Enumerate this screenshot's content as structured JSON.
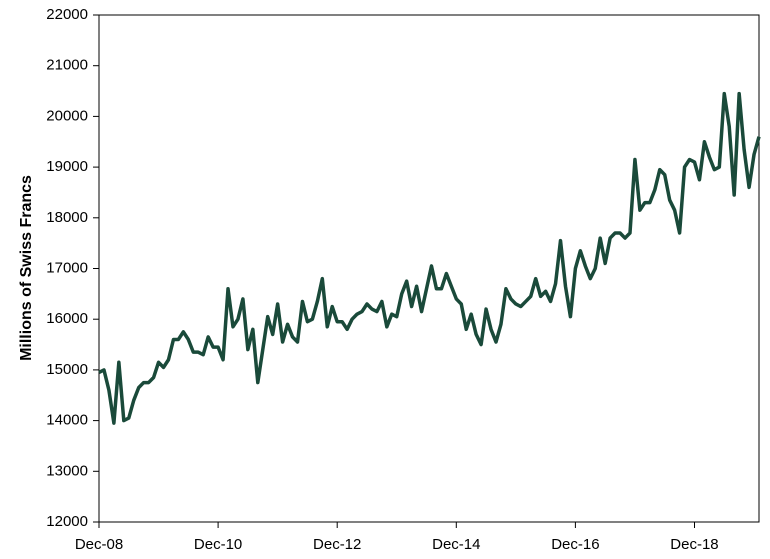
{
  "chart_data": {
    "type": "line",
    "y_label": "Millions of Swiss Francs",
    "categories": [
      "Dec-08",
      null,
      null,
      null,
      null,
      null,
      null,
      null,
      null,
      null,
      null,
      null,
      null,
      null,
      null,
      null,
      null,
      null,
      null,
      null,
      null,
      null,
      null,
      null,
      "Dec-10",
      null,
      null,
      null,
      null,
      null,
      null,
      null,
      null,
      null,
      null,
      null,
      null,
      null,
      null,
      null,
      null,
      null,
      null,
      null,
      null,
      null,
      null,
      null,
      "Dec-12",
      null,
      null,
      null,
      null,
      null,
      null,
      null,
      null,
      null,
      null,
      null,
      null,
      null,
      null,
      null,
      null,
      null,
      null,
      null,
      null,
      null,
      null,
      null,
      "Dec-14",
      null,
      null,
      null,
      null,
      null,
      null,
      null,
      null,
      null,
      null,
      null,
      null,
      null,
      null,
      null,
      null,
      null,
      null,
      null,
      null,
      null,
      null,
      null,
      "Dec-16",
      null,
      null,
      null,
      null,
      null,
      null,
      null,
      null,
      null,
      null,
      null,
      null,
      null,
      null,
      null,
      null,
      null,
      null,
      null,
      null,
      null,
      null,
      null,
      "Dec-18",
      null,
      null,
      null,
      null,
      null,
      null,
      null,
      null,
      null,
      null,
      null,
      null,
      null
    ],
    "values": [
      14950,
      15000,
      14600,
      13950,
      15150,
      14000,
      14050,
      14400,
      14650,
      14750,
      14750,
      14850,
      15150,
      15050,
      15200,
      15600,
      15600,
      15750,
      15600,
      15350,
      15350,
      15300,
      15650,
      15450,
      15450,
      15200,
      16600,
      15850,
      16000,
      16400,
      15400,
      15800,
      14750,
      15400,
      16050,
      15700,
      16300,
      15550,
      15900,
      15650,
      15550,
      16350,
      15950,
      16000,
      16350,
      16800,
      15850,
      16250,
      15950,
      15950,
      15800,
      16000,
      16100,
      16150,
      16300,
      16200,
      16150,
      16350,
      15850,
      16100,
      16050,
      16500,
      16750,
      16250,
      16650,
      16150,
      16600,
      17050,
      16600,
      16600,
      16900,
      16650,
      16400,
      16300,
      15800,
      16100,
      15700,
      15500,
      16200,
      15800,
      15550,
      15900,
      16600,
      16400,
      16300,
      16250,
      16350,
      16450,
      16800,
      16450,
      16550,
      16350,
      16700,
      17550,
      16650,
      16050,
      17000,
      17350,
      17050,
      16800,
      17000,
      17600,
      17100,
      17600,
      17700,
      17700,
      17600,
      17700,
      19150,
      18150,
      18300,
      18300,
      18550,
      18950,
      18850,
      18350,
      18150,
      17700,
      19000,
      19150,
      19100,
      18750,
      19500,
      19200,
      18950,
      19000,
      20450,
      19800,
      18450,
      20450,
      19350,
      18600,
      19250,
      19600
    ],
    "color": "#1a4a3a",
    "ylim": [
      12000,
      22000
    ],
    "yticks": [
      12000,
      13000,
      14000,
      15000,
      16000,
      17000,
      18000,
      19000,
      20000,
      21000,
      22000
    ],
    "grid": false
  }
}
